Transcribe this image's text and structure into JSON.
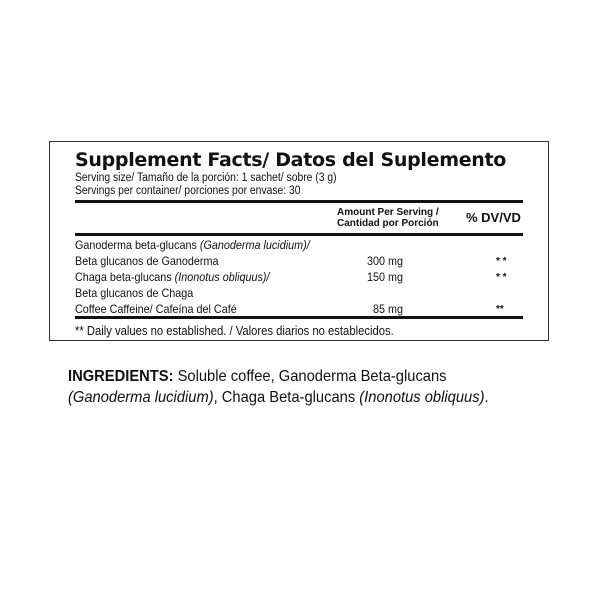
{
  "facts": {
    "title": "Supplement Facts/ Datos del Suplemento",
    "serving_size": "Serving size/ Tamaño de la porción: 1 sachet/ sobre (3 g)",
    "servings_per_container": "Servings per container/ porciones por envase: 30",
    "amount_header_1": "Amount Per Serving /",
    "amount_header_2": "Cantidad por Porción",
    "dv_header": "% DV/VD",
    "rows": [
      {
        "name": "Ganoderma beta-glucans ",
        "latin": "(Ganoderma lucidium)/",
        "amount": "",
        "dv": ""
      },
      {
        "name": "Beta glucanos de Ganoderma",
        "latin": "",
        "amount": "300 mg",
        "dv": "* *"
      },
      {
        "name": "Chaga beta-glucans ",
        "latin": "(Inonotus obliquus)/",
        "amount": "150 mg",
        "dv": "* *"
      },
      {
        "name": "Beta glucanos de Chaga",
        "latin": "",
        "amount": "",
        "dv": ""
      },
      {
        "name": "Coffee Caffeine/ Cafeína del Café",
        "latin": "",
        "amount": "85 mg",
        "dv": "**"
      }
    ],
    "footnote": "** Daily values no established. / Valores diarios no establecidos."
  },
  "ingredients": {
    "label": "INGREDIENTS:",
    "text1": " Soluble coffee, Ganoderma Beta-glucans ",
    "latin1": "(Ganoderma lucidium)",
    "text2": ", Chaga Beta-glucans ",
    "latin2": "(Inonotus obliquus)",
    "text3": "."
  }
}
